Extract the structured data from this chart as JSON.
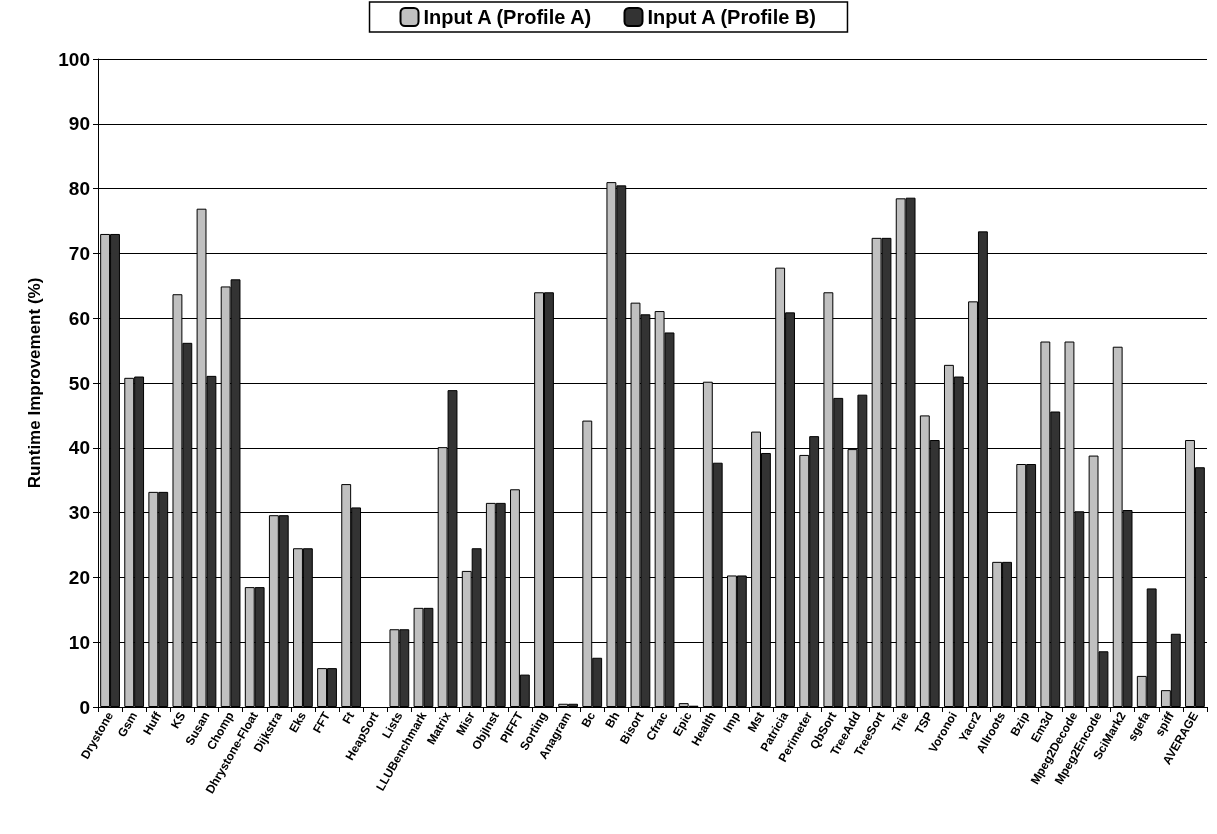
{
  "chart_data": {
    "type": "bar",
    "ylabel": "Runtime Improvement (%)",
    "categories": [
      "Drystone",
      "Gsm",
      "Huff",
      "KS",
      "Susan",
      "Chomp",
      "Dhrystone-Float",
      "Dijkstra",
      "Eks",
      "FFT",
      "Ft",
      "HeapSort",
      "Lists",
      "LLUBenchmark",
      "Matrix",
      "Misr",
      "ObjInst",
      "PIFFT",
      "Sorting",
      "Anagram",
      "Bc",
      "Bh",
      "Bisort",
      "Cfrac",
      "Epic",
      "Health",
      "Imp",
      "Mst",
      "Patricia",
      "Perimeter",
      "QbSort",
      "TreeAdd",
      "TreeSort",
      "Trie",
      "TSP",
      "Voronoi",
      "Yacr2",
      "Allroots",
      "Bzip",
      "Em3d",
      "Mpeg2Decode",
      "Mpeg2Encode",
      "SciMark2",
      "sgefa",
      "spiff",
      "AVERAGE"
    ],
    "series": [
      {
        "name": "Input A (Profile A)",
        "color": "#c0c0c0",
        "values": [
          73,
          50.8,
          33.2,
          63.7,
          76.9,
          64.9,
          18.5,
          29.6,
          24.5,
          6,
          34.4,
          0,
          12,
          15.3,
          40.1,
          21,
          31.5,
          33.6,
          64,
          0.5,
          44.2,
          81,
          62.4,
          61.1,
          0.6,
          50.2,
          20.3,
          42.5,
          67.8,
          38.9,
          64,
          39.8,
          72.4,
          78.5,
          45,
          52.8,
          62.6,
          22.4,
          37.5,
          56.4,
          56.4,
          38.8,
          55.6,
          4.8,
          2.6,
          41.2
        ]
      },
      {
        "name": "Input A (Profile B)",
        "color": "#333333",
        "values": [
          73,
          51,
          33.2,
          56.2,
          51.1,
          66,
          18.5,
          29.6,
          24.5,
          6,
          30.8,
          0,
          12,
          15.3,
          48.9,
          24.5,
          31.5,
          5,
          64,
          0.5,
          7.6,
          80.5,
          60.6,
          57.8,
          0.2,
          37.7,
          20.3,
          39.2,
          60.9,
          41.8,
          47.7,
          48.2,
          72.4,
          78.6,
          41.2,
          51,
          73.4,
          22.4,
          37.5,
          45.6,
          30.2,
          8.6,
          30.4,
          18.3,
          11.3,
          37
        ]
      }
    ],
    "ylim": [
      0,
      100
    ],
    "yticks": [
      0,
      10,
      20,
      30,
      40,
      50,
      60,
      70,
      80,
      90,
      100
    ],
    "grid": "y",
    "legend": "top"
  }
}
